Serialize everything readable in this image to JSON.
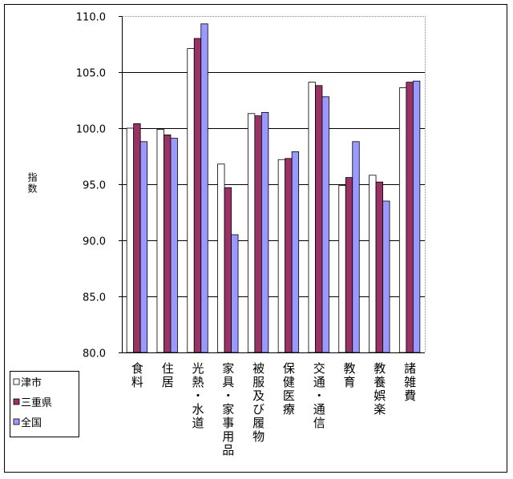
{
  "chart_data": {
    "type": "bar",
    "y_label": "指数",
    "categories": [
      "食料",
      "住居",
      "光熱・水道",
      "家具・家事用品",
      "被服及び履物",
      "保健医療",
      "交通・通信",
      "教育",
      "教養娯楽",
      "諸雑費"
    ],
    "series": [
      {
        "name": "津市",
        "color": "#ffffff",
        "values": [
          100.0,
          99.9,
          107.1,
          96.8,
          101.3,
          97.2,
          104.1,
          94.9,
          95.8,
          103.6
        ]
      },
      {
        "name": "三重県",
        "color": "#993366",
        "values": [
          100.4,
          99.4,
          108.0,
          94.7,
          101.1,
          97.3,
          103.8,
          95.6,
          95.2,
          104.1
        ]
      },
      {
        "name": "全国",
        "color": "#9999ff",
        "values": [
          98.8,
          99.1,
          109.3,
          90.5,
          101.4,
          97.9,
          102.8,
          98.8,
          93.5,
          104.2
        ]
      }
    ],
    "ylim": [
      80,
      110
    ],
    "yticks": [
      {
        "value": 80,
        "label": "80.0"
      },
      {
        "value": 85,
        "label": "85.0"
      },
      {
        "value": 90,
        "label": "90.0"
      },
      {
        "value": 95,
        "label": "95.0"
      },
      {
        "value": 100,
        "label": "100.0"
      },
      {
        "value": 105,
        "label": "105.0"
      },
      {
        "value": 110,
        "label": "110.0"
      }
    ],
    "grid": true
  }
}
